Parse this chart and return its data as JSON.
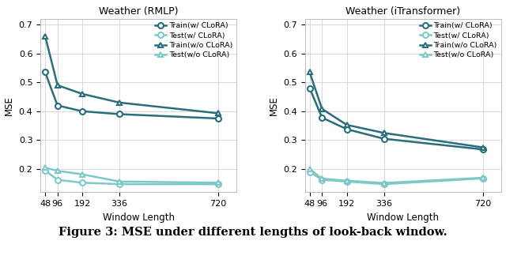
{
  "x": [
    48,
    96,
    192,
    336,
    720
  ],
  "panel1": {
    "title": "Weather (RMLP)",
    "train_with": [
      0.535,
      0.42,
      0.4,
      0.39,
      0.375
    ],
    "test_with": [
      0.195,
      0.163,
      0.153,
      0.148,
      0.148
    ],
    "train_without": [
      0.66,
      0.49,
      0.46,
      0.43,
      0.393
    ],
    "test_without": [
      0.205,
      0.194,
      0.182,
      0.157,
      0.153
    ]
  },
  "panel2": {
    "title": "Weather (iTransformer)",
    "train_with": [
      0.48,
      0.378,
      0.338,
      0.305,
      0.268
    ],
    "test_with": [
      0.19,
      0.163,
      0.157,
      0.148,
      0.168
    ],
    "train_without": [
      0.535,
      0.408,
      0.353,
      0.325,
      0.275
    ],
    "test_without": [
      0.2,
      0.167,
      0.16,
      0.152,
      0.17
    ]
  },
  "color_dark": "#2a6d7c",
  "color_light": "#7ec8c8",
  "ylim": [
    0.12,
    0.72
  ],
  "yticks": [
    0.2,
    0.3,
    0.4,
    0.5,
    0.6,
    0.7
  ],
  "xlabel": "Window Length",
  "ylabel": "MSE",
  "legend_labels": [
    "Train(w/ CLoRA)",
    "Test(w/ CLoRA)",
    "Train(w/o CLoRA)",
    "Test(w/o CLoRA)"
  ],
  "caption": "Figure 3: MSE under different lengths of look-back window.",
  "linewidth": 1.8,
  "markersize": 5
}
